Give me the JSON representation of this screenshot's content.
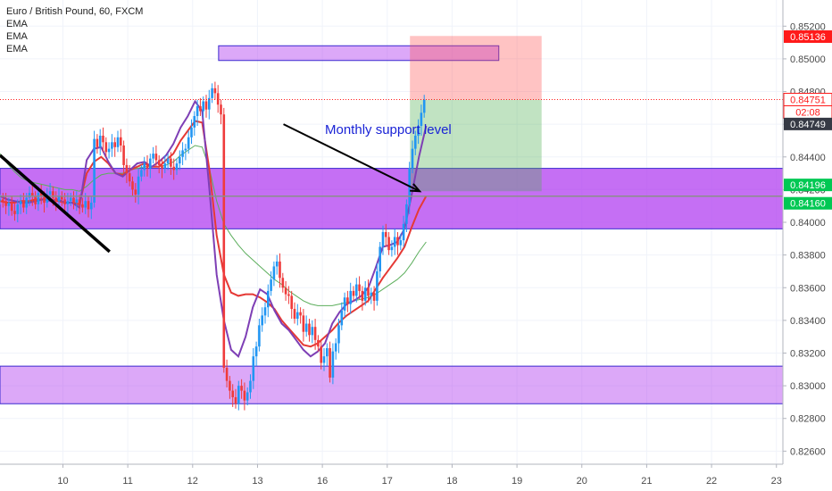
{
  "header": {
    "title": "Euro / British Pound, 60, FXCM",
    "indicators": [
      "EMA",
      "EMA",
      "EMA"
    ]
  },
  "annotation": {
    "text": "Monthly support level"
  },
  "colors": {
    "up": "#2196f3",
    "down": "#ef3b3b",
    "ema_fast": "#7e3fb5",
    "ema_mid": "#e53935",
    "ema_slow": "#5cae5c",
    "zone": "#b13ff0",
    "stop": "#ff5252",
    "target": "#4caf50",
    "badge_red": "#ff1a1a",
    "badge_green": "#00c853",
    "badge_dark": "#363a45"
  },
  "chart_data": {
    "type": "candlestick",
    "title": "Euro / British Pound, 60, FXCM",
    "x_ticks": [
      {
        "label": "10",
        "x": 10
      },
      {
        "label": "11",
        "x": 11
      },
      {
        "label": "12",
        "x": 12
      },
      {
        "label": "13",
        "x": 13
      },
      {
        "label": "16",
        "x": 14
      },
      {
        "label": "17",
        "x": 15
      },
      {
        "label": "18",
        "x": 16
      },
      {
        "label": "19",
        "x": 17
      },
      {
        "label": "20",
        "x": 18
      },
      {
        "label": "21",
        "x": 19
      },
      {
        "label": "22",
        "x": 20
      },
      {
        "label": "23",
        "x": 21
      }
    ],
    "x_range": [
      9.03,
      21.1
    ],
    "y_ticks": [
      0.826,
      0.828,
      0.83,
      0.832,
      0.834,
      0.836,
      0.838,
      0.84,
      0.842,
      0.844,
      0.846,
      0.848,
      0.85,
      0.852
    ],
    "y_tick_labels": [
      "0.82600",
      "0.82800",
      "0.83000",
      "0.83200",
      "0.83400",
      "0.83600",
      "0.83800",
      "0.84000",
      "0.84200",
      "0.84400",
      "0.84600",
      "0.84800",
      "0.85000",
      "0.85200"
    ],
    "ylim": [
      0.8252,
      0.8536
    ],
    "price_labels": [
      {
        "text": "0.85136",
        "value": 0.85136,
        "style": "red"
      },
      {
        "text": "0.84751",
        "value": 0.84751,
        "style": "red-outline"
      },
      {
        "text": "02:08",
        "value": 0.84751,
        "style": "red-outline-sub"
      },
      {
        "text": "0.84749",
        "value": 0.84749,
        "style": "dark"
      },
      {
        "text": "0.84196",
        "value": 0.84196,
        "style": "green"
      },
      {
        "text": "0.84160",
        "value": 0.8416,
        "style": "green"
      }
    ],
    "current_price": 0.84751,
    "zones": [
      {
        "x_from": 9.03,
        "x_to": 21.1,
        "y_from": 0.8396,
        "y_to": 0.8433,
        "opacity": 0.75
      },
      {
        "x_from": 9.03,
        "x_to": 21.1,
        "y_from": 0.8289,
        "y_to": 0.8312,
        "opacity": 0.45
      },
      {
        "x_from": 12.4,
        "x_to": 16.72,
        "y_from": 0.8499,
        "y_to": 0.8508,
        "opacity": 0.45
      }
    ],
    "position": {
      "x_from": 15.35,
      "x_to": 17.38,
      "entry": 0.84196,
      "stop": 0.85136,
      "target": 0.84751,
      "upper": 0.85136,
      "lower": 0.84196,
      "stop_top": 0.8514,
      "entry_level": 0.8475,
      "target_bottom": 0.8419
    },
    "horizontal_line": 0.8416,
    "trendline": {
      "x1": 9.03,
      "y1": 0.8441,
      "x2": 10.72,
      "y2": 0.8382
    },
    "arrow": {
      "x1": 13.4,
      "y1": 0.846,
      "x2": 15.5,
      "y2": 0.8419
    },
    "closes": [
      0.8414,
      0.8413,
      0.841,
      0.8412,
      0.8407,
      0.8405,
      0.8411,
      0.8413,
      0.8409,
      0.8415,
      0.8418,
      0.8416,
      0.8411,
      0.8418,
      0.8416,
      0.8412,
      0.8417,
      0.8419,
      0.8415,
      0.8413,
      0.8416,
      0.8414,
      0.8411,
      0.8413,
      0.8415,
      0.8412,
      0.8414,
      0.8411,
      0.8409,
      0.8413,
      0.8408,
      0.8412,
      0.8451,
      0.8446,
      0.8453,
      0.8449,
      0.8443,
      0.8445,
      0.8449,
      0.8446,
      0.8452,
      0.8447,
      0.8435,
      0.843,
      0.8425,
      0.842,
      0.8417,
      0.8428,
      0.8432,
      0.8436,
      0.8433,
      0.8439,
      0.8442,
      0.8438,
      0.8435,
      0.8433,
      0.8436,
      0.8439,
      0.8434,
      0.8432,
      0.8436,
      0.844,
      0.8444,
      0.8445,
      0.8452,
      0.8458,
      0.8465,
      0.8471,
      0.8468,
      0.8474,
      0.8469,
      0.8476,
      0.8482,
      0.8479,
      0.8472,
      0.8466,
      0.8311,
      0.8303,
      0.8297,
      0.8293,
      0.8289,
      0.83,
      0.8297,
      0.8291,
      0.8296,
      0.8303,
      0.8318,
      0.8324,
      0.8337,
      0.8343,
      0.8348,
      0.8358,
      0.8365,
      0.8373,
      0.8376,
      0.8366,
      0.836,
      0.8356,
      0.8355,
      0.8347,
      0.8341,
      0.8345,
      0.8343,
      0.8333,
      0.8338,
      0.8331,
      0.8336,
      0.8328,
      0.8324,
      0.8314,
      0.8318,
      0.8323,
      0.8305,
      0.8321,
      0.8326,
      0.8337,
      0.8346,
      0.8354,
      0.835,
      0.8358,
      0.8355,
      0.8362,
      0.8358,
      0.8352,
      0.836,
      0.8355,
      0.8357,
      0.8352,
      0.837,
      0.8385,
      0.8394,
      0.8391,
      0.8383,
      0.8385,
      0.8391,
      0.8386,
      0.8389,
      0.8399,
      0.8411,
      0.8433,
      0.8445,
      0.8453,
      0.8459,
      0.8467,
      0.8475
    ],
    "ema_fast": [
      0.8416,
      0.8414,
      0.8413,
      0.8412,
      0.8412,
      0.8413,
      0.8414,
      0.8413,
      0.8414,
      0.8412,
      0.8412,
      0.8409,
      0.8438,
      0.8445,
      0.8446,
      0.8437,
      0.843,
      0.8428,
      0.8432,
      0.8436,
      0.8437,
      0.8434,
      0.8437,
      0.8441,
      0.8448,
      0.8458,
      0.8465,
      0.8474,
      0.8468,
      0.842,
      0.8368,
      0.834,
      0.8322,
      0.8318,
      0.833,
      0.8348,
      0.8359,
      0.8356,
      0.8346,
      0.8338,
      0.8334,
      0.8328,
      0.8322,
      0.8318,
      0.8321,
      0.8326,
      0.8338,
      0.8345,
      0.835,
      0.8352,
      0.8355,
      0.836,
      0.8372,
      0.8385,
      0.8386,
      0.8388,
      0.8396,
      0.8417,
      0.844,
      0.8459
    ],
    "ema_mid": [
      0.8413,
      0.8412,
      0.8412,
      0.8413,
      0.8413,
      0.8414,
      0.8414,
      0.8414,
      0.8413,
      0.8412,
      0.8412,
      0.8411,
      0.843,
      0.8437,
      0.844,
      0.8436,
      0.843,
      0.8429,
      0.8432,
      0.8434,
      0.8436,
      0.8434,
      0.8434,
      0.8438,
      0.8442,
      0.845,
      0.8456,
      0.8462,
      0.8461,
      0.8432,
      0.8392,
      0.8368,
      0.8357,
      0.8355,
      0.8356,
      0.8356,
      0.8354,
      0.8351,
      0.8347,
      0.834,
      0.8335,
      0.833,
      0.8325,
      0.8324,
      0.8326,
      0.833,
      0.8334,
      0.8339,
      0.8343,
      0.8346,
      0.8349,
      0.8352,
      0.8359,
      0.8366,
      0.8372,
      0.8378,
      0.8385,
      0.8397,
      0.8408,
      0.8416
    ],
    "ema_slow": [
      0.8442,
      0.8436,
      0.8431,
      0.8427,
      0.8425,
      0.8424,
      0.8423,
      0.8422,
      0.8421,
      0.842,
      0.842,
      0.8419,
      0.8422,
      0.8426,
      0.8429,
      0.843,
      0.843,
      0.843,
      0.8432,
      0.8433,
      0.8434,
      0.8434,
      0.8434,
      0.8435,
      0.8437,
      0.8441,
      0.8444,
      0.8447,
      0.8446,
      0.8433,
      0.8413,
      0.8399,
      0.8392,
      0.8386,
      0.8381,
      0.8377,
      0.8373,
      0.8369,
      0.8365,
      0.8362,
      0.8358,
      0.8355,
      0.8352,
      0.835,
      0.8349,
      0.8349,
      0.8349,
      0.835,
      0.8351,
      0.8352,
      0.8353,
      0.8354,
      0.8356,
      0.8359,
      0.8362,
      0.8365,
      0.8369,
      0.8375,
      0.8382,
      0.8388
    ]
  }
}
